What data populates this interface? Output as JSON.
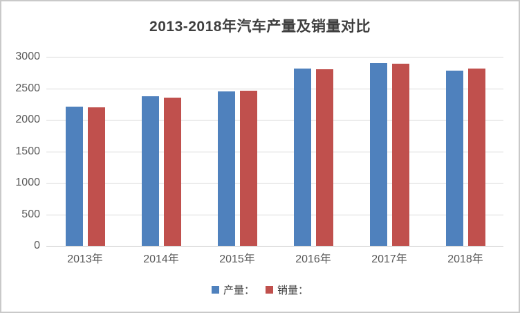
{
  "chart_data": {
    "type": "bar",
    "title": "2013-2018年汽车产量及销量对比",
    "categories": [
      "2013年",
      "2014年",
      "2015年",
      "2016年",
      "2017年",
      "2018年"
    ],
    "series": [
      {
        "name": "产量：",
        "color": "#4f81bd",
        "values": [
          2212,
          2372,
          2450,
          2812,
          2902,
          2781
        ]
      },
      {
        "name": "销量：",
        "color": "#c0504d",
        "values": [
          2198,
          2349,
          2460,
          2803,
          2888,
          2808
        ]
      }
    ],
    "xlabel": "",
    "ylabel": "",
    "ylim": [
      0,
      3000
    ],
    "yticks": [
      0,
      500,
      1000,
      1500,
      2000,
      2500,
      3000
    ],
    "grid": "horizontal",
    "legend_position": "bottom"
  },
  "styles": {
    "grid_color": "#d9d9d9",
    "axis_line_color": "#c6c6c6",
    "tick_label_color": "#595959",
    "title_color": "#3f3f3f",
    "frame_border_color": "#c9c9c9",
    "background": "#ffffff"
  }
}
